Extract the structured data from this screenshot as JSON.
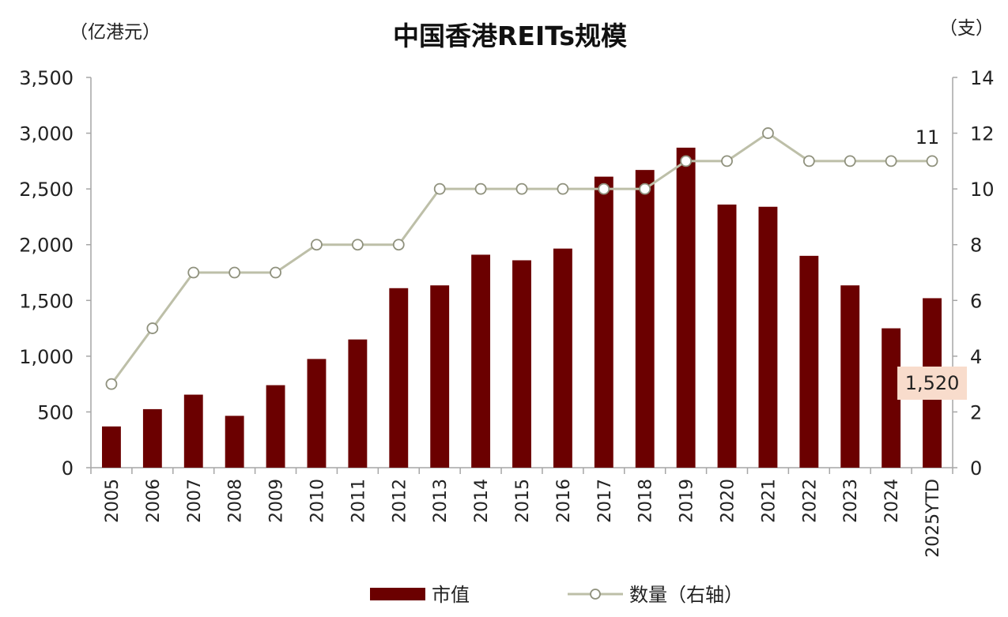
{
  "chart_data": {
    "type": "bar",
    "title": "中国香港REITs规模",
    "left_unit": "（亿港元）",
    "right_unit": "（支）",
    "categories": [
      "2005",
      "2006",
      "2007",
      "2008",
      "2009",
      "2010",
      "2011",
      "2012",
      "2013",
      "2014",
      "2015",
      "2016",
      "2017",
      "2018",
      "2019",
      "2020",
      "2021",
      "2022",
      "2023",
      "2024",
      "2025YTD"
    ],
    "left_axis": {
      "ylim": [
        0,
        3500
      ],
      "ticks": [
        "0",
        "500",
        "1,000",
        "1,500",
        "2,000",
        "2,500",
        "3,000",
        "3,500"
      ]
    },
    "right_axis": {
      "ylim": [
        0,
        14
      ],
      "ticks": [
        "0",
        "2",
        "4",
        "6",
        "8",
        "10",
        "12",
        "14"
      ]
    },
    "series": [
      {
        "name": "市值",
        "type": "bar",
        "axis": "left",
        "color": "#6b0000",
        "values": [
          370,
          525,
          655,
          465,
          740,
          975,
          1150,
          1610,
          1635,
          1910,
          1860,
          1965,
          2610,
          2670,
          2870,
          2360,
          2340,
          1900,
          1635,
          1250,
          1520
        ]
      },
      {
        "name": "数量（右轴）",
        "type": "line",
        "axis": "right",
        "color": "#bdbfa8",
        "values": [
          3,
          5,
          7,
          7,
          7,
          8,
          8,
          8,
          10,
          10,
          10,
          10,
          10,
          10,
          11,
          11,
          12,
          11,
          11,
          11,
          11
        ]
      }
    ],
    "annotations": [
      {
        "text": "1,520",
        "series": "市值",
        "category": "2025YTD"
      },
      {
        "text": "11",
        "series": "数量（右轴）",
        "category": "2025YTD"
      }
    ],
    "grid": false,
    "legend_position": "bottom"
  }
}
